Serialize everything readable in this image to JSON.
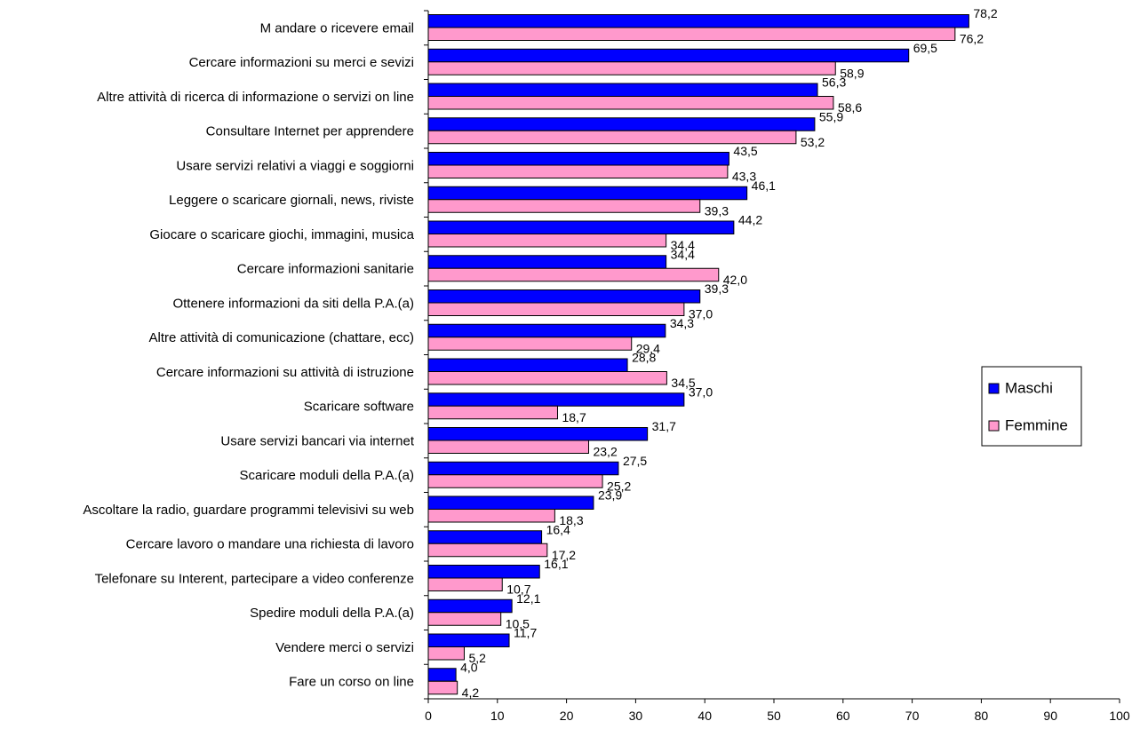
{
  "chart_data": {
    "type": "bar",
    "orientation": "horizontal",
    "categories": [
      "M andare o ricevere email",
      "Cercare informazioni su merci e sevizi",
      "Altre attività di ricerca di informazione o servizi on line",
      "Consultare Internet per apprendere",
      "Usare servizi relativi a viaggi e soggiorni",
      "Leggere o scaricare giornali, news, riviste",
      "Giocare o scaricare giochi, immagini, musica",
      "Cercare informazioni sanitarie",
      "Ottenere informazioni da siti della P.A.(a)",
      "Altre attività di comunicazione (chattare, ecc)",
      "Cercare informazioni su attività di istruzione",
      "Scaricare  software ",
      "Usare servizi bancari via internet",
      "Scaricare moduli della P.A.(a)",
      "Ascoltare la radio, guardare programmi televisivi su web",
      "Cercare lavoro o mandare una richiesta di lavoro",
      "Telefonare su Interent, partecipare a video conferenze",
      "Spedire moduli della P.A.(a)",
      "Vendere merci o servizi",
      "Fare un corso on line"
    ],
    "series": [
      {
        "name": "Maschi",
        "color": "#0000ff",
        "values": [
          78.2,
          69.5,
          56.3,
          55.9,
          43.5,
          46.1,
          44.2,
          34.4,
          39.3,
          34.3,
          28.8,
          37.0,
          31.7,
          27.5,
          23.9,
          16.4,
          16.1,
          12.1,
          11.7,
          4.0
        ],
        "labels": [
          "78,2",
          "69,5",
          "56,3",
          "55,9",
          "43,5",
          "46,1",
          "44,2",
          "34,4",
          "39,3",
          "34,3",
          "28,8",
          "37,0",
          "31,7",
          "27,5",
          "23,9",
          "16,4",
          "16,1",
          "12,1",
          "11,7",
          "4,0"
        ]
      },
      {
        "name": "Femmine",
        "color": "#ff99cc",
        "values": [
          76.2,
          58.9,
          58.6,
          53.2,
          43.3,
          39.3,
          34.4,
          42.0,
          37.0,
          29.4,
          34.5,
          18.7,
          23.2,
          25.2,
          18.3,
          17.2,
          10.7,
          10.5,
          5.2,
          4.2
        ],
        "labels": [
          "76,2",
          "58,9",
          "58,6",
          "53,2",
          "43,3",
          "39,3",
          "34,4",
          "42,0",
          "37,0",
          "29,4",
          "34,5",
          "18,7",
          "23,2",
          "25,2",
          "18,3",
          "17,2",
          "10,7",
          "10,5",
          "5,2",
          "4,2"
        ]
      }
    ],
    "xlim": [
      0,
      100
    ],
    "xticks": [
      0,
      10,
      20,
      30,
      40,
      50,
      60,
      70,
      80,
      90,
      100
    ],
    "grid": false,
    "legend_position": "right"
  }
}
